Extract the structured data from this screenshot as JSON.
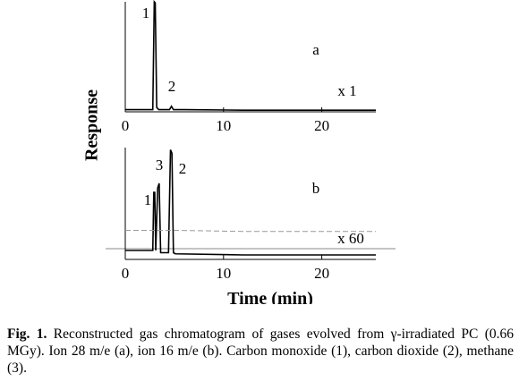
{
  "axis_labels": {
    "y": "Response",
    "x": "Time (min)"
  },
  "chart_data": [
    {
      "type": "line",
      "xlim": [
        0,
        25.5
      ],
      "ylim": [
        0,
        100
      ],
      "xticks": [
        0,
        10,
        20
      ],
      "x": [
        0,
        2.8,
        2.95,
        3.05,
        3.2,
        3.4,
        4.5,
        4.7,
        4.9,
        6,
        12,
        25.5
      ],
      "series": [
        {
          "name": "x 1",
          "color": "#000000",
          "values": [
            2,
            2,
            100,
            99,
            4,
            2,
            2,
            5,
            2,
            2,
            1.5,
            1.5
          ]
        }
      ],
      "annotations": [
        "1",
        "2",
        "a",
        "x 1"
      ]
    },
    {
      "type": "line",
      "xlim": [
        0,
        25.5
      ],
      "ylim": [
        0,
        100
      ],
      "xticks": [
        0,
        10,
        20
      ],
      "x": [
        0,
        2.8,
        2.9,
        3.0,
        3.1,
        3.3,
        3.45,
        3.6,
        4.4,
        4.6,
        4.75,
        4.9,
        5.1,
        12,
        25.5
      ],
      "series": [
        {
          "name": "x 1",
          "color": "#000000",
          "values": [
            8,
            8,
            60,
            60,
            8,
            64,
            68,
            6,
            6,
            98,
            95,
            6,
            5,
            4,
            4
          ]
        },
        {
          "name": "x 60",
          "color": "#999999",
          "values": [
            26,
            26,
            26,
            26,
            26,
            26,
            26,
            26,
            26,
            26,
            26,
            26,
            26,
            25,
            25
          ]
        }
      ],
      "annotations": [
        "1",
        "3",
        "2",
        "b",
        "x 60"
      ]
    }
  ],
  "caption": {
    "label": "Fig. 1.",
    "text": "Reconstructed gas chromatogram of gases evolved from γ-irradiated PC (0.66 MGy). Ion 28 m/e (a), ion 16 m/e (b). Carbon monoxide (1), carbon dioxide (2), methane (3)."
  }
}
